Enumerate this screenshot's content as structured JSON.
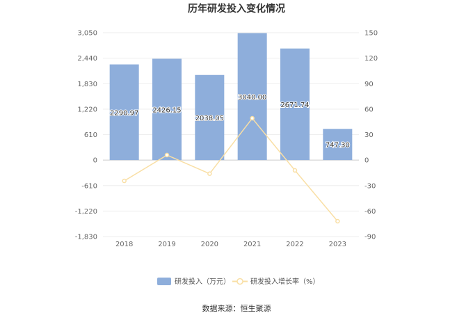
{
  "chart_data": {
    "type": "bar",
    "title": "历年研发投入变化情况",
    "categories": [
      "2018",
      "2019",
      "2020",
      "2021",
      "2022",
      "2023"
    ],
    "series": [
      {
        "name": "研发投入（万元）",
        "type": "bar",
        "axis": "left",
        "values": [
          2290.97,
          2426.15,
          2038.05,
          3040.0,
          2671.74,
          747.3
        ],
        "labels": [
          "2290.97",
          "2426.15",
          "2038.05",
          "3040.00",
          "2671.74",
          "747.30"
        ],
        "color": "#8eaedb"
      },
      {
        "name": "研发投入增长率（%）",
        "type": "line",
        "axis": "right",
        "values": [
          -24.5,
          5.9,
          -16.0,
          49.2,
          -12.1,
          -72.0
        ],
        "color": "#f9dfa5"
      }
    ],
    "y_left": {
      "min": -1830,
      "max": 3050,
      "ticks": [
        3050,
        2440,
        1830,
        1220,
        610,
        0,
        -610,
        -1220,
        -1830
      ],
      "tick_labels": [
        "3,050",
        "2,440",
        "1,830",
        "1,220",
        "610",
        "0",
        "-610",
        "-1,220",
        "-1,830"
      ]
    },
    "y_right": {
      "min": -90,
      "max": 150,
      "ticks": [
        150,
        120,
        90,
        60,
        30,
        0,
        -30,
        -60,
        -90
      ],
      "tick_labels": [
        "150",
        "120",
        "90",
        "60",
        "30",
        "0",
        "-30",
        "-60",
        "-90"
      ]
    },
    "grid": true,
    "legend": "bottom-center"
  },
  "source_text": "数据来源：恒生聚源"
}
